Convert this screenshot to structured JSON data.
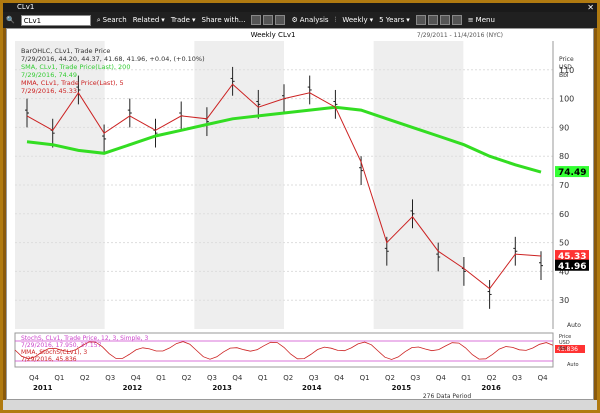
{
  "window": {
    "title": "CLv1"
  },
  "toolbar": {
    "symbol": "CLv1",
    "menu": "Menu",
    "search": "Search",
    "related": "Related",
    "trade": "Trade",
    "share": "Share with...",
    "analysis": "Analysis",
    "interval": "Weekly",
    "range": "5 Years"
  },
  "chart": {
    "title": "Weekly CLv1",
    "date_range": "7/29/2011 - 11/4/2016 (NYC)",
    "price_header": [
      "Price",
      "USD",
      "Bbl"
    ],
    "y_ticks": [
      30,
      40,
      50,
      60,
      70,
      80,
      90,
      100,
      110
    ],
    "ylim": [
      20,
      120
    ],
    "legend": [
      {
        "text": "BarOHLC, CLv1, Trade Price",
        "color": "#333333"
      },
      {
        "text": "7/29/2016, 44.20, 44.37, 41.68, 41.96, +0.04, (+0.10%)",
        "color": "#333333"
      },
      {
        "text": "SMA, CLv1, Trade Price(Last), 200",
        "color": "#33cc33"
      },
      {
        "text": "7/29/2016, 74.49",
        "color": "#33cc33"
      },
      {
        "text": "MMA, CLv1, Trade Price(Last), 5",
        "color": "#cc2222"
      },
      {
        "text": "7/29/2016, 45.33",
        "color": "#cc2222"
      }
    ],
    "tags": [
      {
        "value": "74.49",
        "bg": "#33ff33",
        "fg": "#000000"
      },
      {
        "value": "45.33",
        "bg": "#ff3333",
        "fg": "#ffffff"
      },
      {
        "value": "41.96",
        "bg": "#000000",
        "fg": "#ffffff"
      }
    ],
    "auto_label": "Auto",
    "quarters": [
      "Q4",
      "Q1",
      "Q2",
      "Q3",
      "Q4",
      "Q1",
      "Q2",
      "Q3",
      "Q4",
      "Q1",
      "Q2",
      "Q3",
      "Q4",
      "Q1",
      "Q2",
      "Q3",
      "Q4",
      "Q1",
      "Q2",
      "Q3",
      "Q4"
    ],
    "years": [
      "2011",
      "2012",
      "2013",
      "2014",
      "2015",
      "2016"
    ],
    "data_period": "276 Data Period"
  },
  "stoch": {
    "legend": [
      {
        "text": "StochS, CLv1, Trade Price, 12, 3, Simple, 3",
        "color": "#cc44cc"
      },
      {
        "text": "7/29/2016, 17.950, 37.157",
        "color": "#cc44cc"
      },
      {
        "text": "MMA, StochS(CLv1), 3",
        "color": "#cc2222"
      },
      {
        "text": "7/29/2016, 45.836",
        "color": "#cc2222"
      }
    ],
    "tag": "45.836",
    "header": [
      "Price",
      "USD",
      "Bbl"
    ],
    "auto_label": "Auto"
  },
  "chart_data": {
    "type": "line",
    "title": "Weekly CLv1",
    "x": [
      "2011-Q3",
      "2011-Q4",
      "2012-Q1",
      "2012-Q2",
      "2012-Q3",
      "2012-Q4",
      "2013-Q1",
      "2013-Q2",
      "2013-Q3",
      "2013-Q4",
      "2014-Q1",
      "2014-Q2",
      "2014-Q3",
      "2014-Q4",
      "2015-Q1",
      "2015-Q2",
      "2015-Q3",
      "2015-Q4",
      "2016-Q1",
      "2016-Q2",
      "2016-Q3"
    ],
    "series": [
      {
        "name": "BarOHLC, CLv1, Trade Price",
        "values": [
          95,
          88,
          103,
          86,
          95,
          88,
          94,
          92,
          106,
          98,
          100,
          103,
          98,
          75,
          47,
          60,
          45,
          40,
          32,
          47,
          42
        ]
      },
      {
        "name": "SMA, CLv1, Trade Price(Last), 200",
        "values": [
          85,
          84,
          82,
          81,
          84,
          87,
          89,
          91,
          93,
          94,
          95,
          96,
          97,
          96,
          93,
          90,
          87,
          84,
          80,
          77,
          74.49
        ]
      },
      {
        "name": "MMA, CLv1, Trade Price(Last), 5",
        "values": [
          94,
          89,
          102,
          88,
          94,
          89,
          94,
          93,
          105,
          97,
          100,
          102,
          97,
          78,
          50,
          59,
          47,
          41,
          34,
          46,
          45.33
        ]
      }
    ],
    "ylim": [
      20,
      120
    ]
  }
}
